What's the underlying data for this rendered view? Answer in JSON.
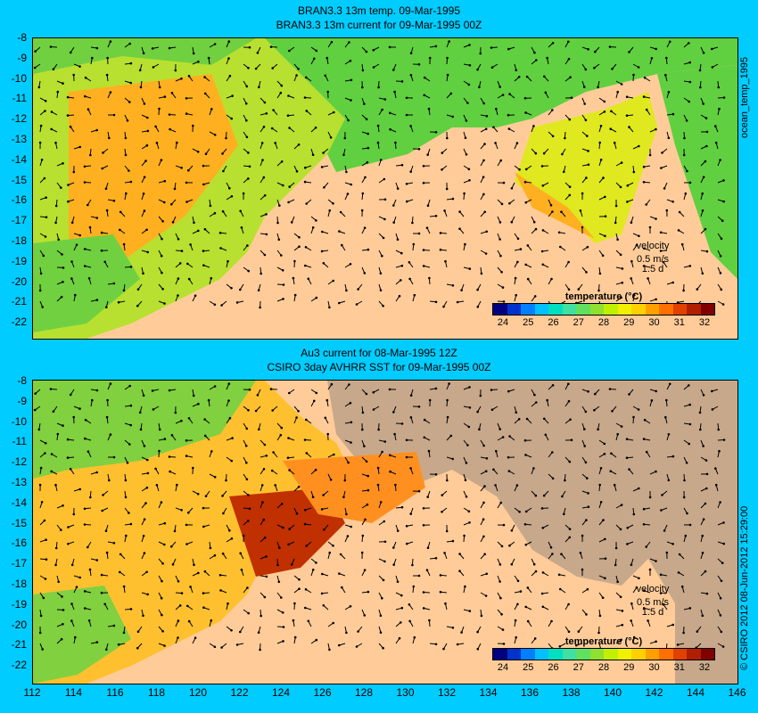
{
  "top_panel": {
    "title_line1": "BRAN3.3 13m temp. 09-Mar-1995",
    "title_line2": "BRAN3.3 13m current for 09-Mar-1995 00Z",
    "side_label": "ocean_temp_1995"
  },
  "bottom_panel": {
    "title_line1": "Au3 current for 08-Mar-1995 12Z",
    "title_line2": "CSIRO 3day AVHRR SST for 09-Mar-1995 00Z",
    "side_label": "© CSIRO 2012  08-Jun-2012 15:29:00"
  },
  "velocity_key": {
    "label": "velocity",
    "speed": "0.5 m/s",
    "duration": "1.5 d"
  },
  "colorbar": {
    "title": "temperature (°C)",
    "ticks": [
      "24",
      "25",
      "26",
      "27",
      "28",
      "29",
      "30",
      "31",
      "32"
    ],
    "colors": [
      "#000080",
      "#0033cc",
      "#0080ff",
      "#00c0ff",
      "#00e0c0",
      "#40e0a0",
      "#60e060",
      "#90e030",
      "#c0f000",
      "#f0f000",
      "#ffd000",
      "#ffa000",
      "#ff7000",
      "#e04000",
      "#b02000",
      "#800000"
    ]
  },
  "lat_ticks": [
    "-8",
    "-9",
    "-10",
    "-11",
    "-12",
    "-13",
    "-14",
    "-15",
    "-16",
    "-17",
    "-18",
    "-19",
    "-20",
    "-21",
    "-22"
  ],
  "lon_ticks": [
    "112",
    "114",
    "116",
    "118",
    "120",
    "122",
    "124",
    "126",
    "128",
    "130",
    "132",
    "134",
    "136",
    "138",
    "140",
    "142",
    "144",
    "146"
  ],
  "colors": {
    "background": "#00ccff",
    "land": "#ffcc99",
    "no_data": "#c8a88a",
    "sea_warm": "#ffb020",
    "sea_mid": "#c0e000",
    "sea_cool": "#40d040"
  }
}
